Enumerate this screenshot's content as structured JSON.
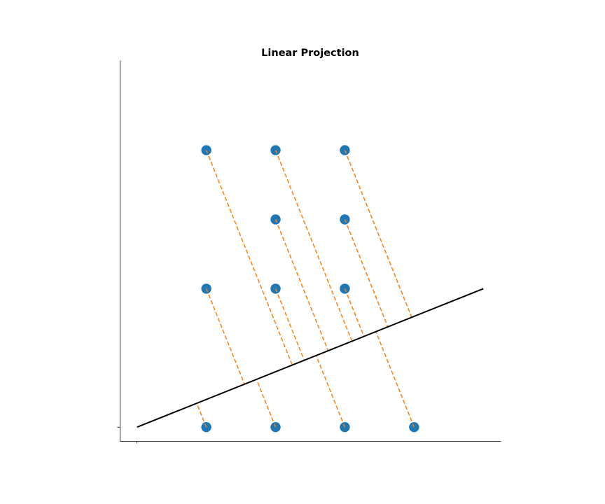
{
  "chart_data": {
    "type": "scatter",
    "title": "Linear Projection",
    "xlabel": "",
    "ylabel": "",
    "xlim": [
      -0.25,
      5.25
    ],
    "ylim": [
      -0.2,
      5.3
    ],
    "x_ticks": [
      0
    ],
    "y_ticks": [
      0
    ],
    "grid": false,
    "projection_line": {
      "x": [
        0,
        5
      ],
      "y": [
        0,
        2
      ]
    },
    "points": {
      "x": [
        1,
        2,
        3,
        4,
        1,
        2,
        3,
        2,
        3,
        1,
        2,
        3
      ],
      "y": [
        0,
        0,
        0,
        0,
        2,
        2,
        2,
        3,
        3,
        4,
        4,
        4
      ]
    },
    "colors": {
      "points": "#1f77b4",
      "projections": "#ff7f0e",
      "line": "#000000"
    }
  }
}
